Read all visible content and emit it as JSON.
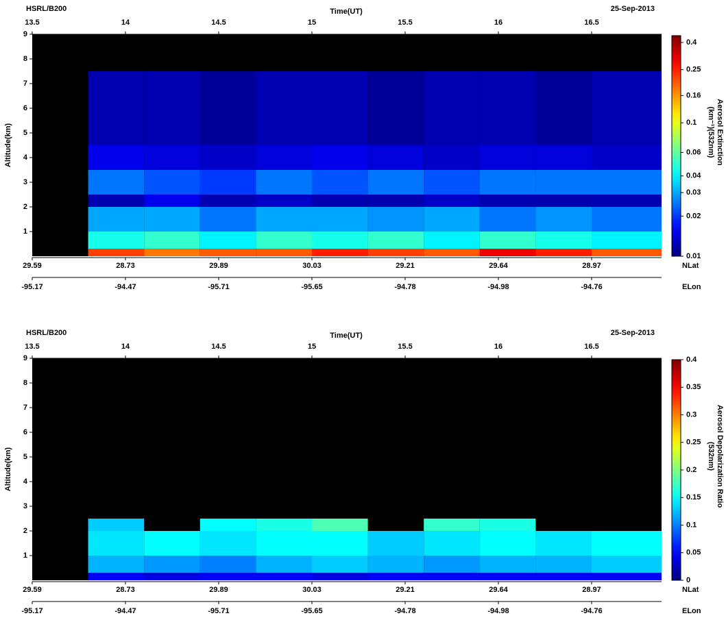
{
  "chart_data": [
    {
      "type": "heatmap",
      "title": "HSRL/B200",
      "date": "25-Sep-2013",
      "xlabel": "Time(UT)",
      "ylabel": "Altitude(km)",
      "xlim": [
        13.5,
        16.875
      ],
      "xticks": [
        13.5,
        14,
        14.5,
        15,
        15.5,
        16,
        16.5
      ],
      "ylim": [
        0,
        9
      ],
      "yticks": [
        1,
        2,
        3,
        4,
        5,
        6,
        7,
        8,
        9
      ],
      "x_bins": [
        13.5,
        13.8,
        14.1,
        14.4,
        14.7,
        15.0,
        15.3,
        15.6,
        15.9,
        16.2,
        16.5,
        16.875
      ],
      "y_bins": [
        0,
        0.3,
        1,
        2,
        2.5,
        3.5,
        4.5,
        7.5,
        9
      ],
      "z": [
        [
          null,
          0.22,
          0.18,
          0.2,
          0.2,
          0.25,
          0.22,
          0.2,
          0.3,
          0.25,
          0.2
        ],
        [
          null,
          0.045,
          0.05,
          0.04,
          0.05,
          0.045,
          0.05,
          0.04,
          0.05,
          0.045,
          0.04
        ],
        [
          null,
          0.03,
          0.03,
          0.025,
          0.03,
          0.03,
          0.028,
          0.03,
          0.025,
          0.028,
          0.025
        ],
        [
          null,
          0.012,
          0.015,
          0.012,
          0.013,
          0.012,
          0.012,
          0.013,
          0.012,
          0.012,
          0.012
        ],
        [
          null,
          0.025,
          0.022,
          0.02,
          0.025,
          0.022,
          0.025,
          0.022,
          0.025,
          0.025,
          0.025
        ],
        [
          null,
          0.015,
          0.014,
          0.013,
          0.014,
          0.015,
          0.014,
          0.013,
          0.014,
          0.014,
          0.013
        ],
        [
          null,
          0.012,
          0.012,
          0.011,
          0.012,
          0.012,
          0.011,
          0.012,
          0.012,
          0.011,
          0.012
        ],
        [
          null,
          null,
          null,
          null,
          null,
          null,
          null,
          null,
          null,
          null,
          null
        ]
      ],
      "colorbar": {
        "label": [
          "Aerosol Extinction",
          "(km⁻¹)(532nm)"
        ],
        "scale": "log",
        "clim": [
          0.01,
          0.45
        ],
        "ticks": [
          0.01,
          0.02,
          0.03,
          0.04,
          0.06,
          0.1,
          0.16,
          0.25,
          0.4
        ]
      },
      "nlat": {
        "name": "NLat",
        "ticks": [
          {
            "value": 13.5,
            "label": "29.59"
          },
          {
            "value": 14,
            "label": "28.73"
          },
          {
            "value": 14.5,
            "label": "29.89"
          },
          {
            "value": 15,
            "label": "30.03"
          },
          {
            "value": 15.5,
            "label": "29.21"
          },
          {
            "value": 16,
            "label": "29.64"
          },
          {
            "value": 16.5,
            "label": "28.97"
          }
        ]
      },
      "elon": {
        "name": "ELon",
        "ticks": [
          {
            "value": 13.5,
            "label": "-95.17"
          },
          {
            "value": 14,
            "label": "-94.47"
          },
          {
            "value": 14.5,
            "label": "-95.71"
          },
          {
            "value": 15,
            "label": "-95.65"
          },
          {
            "value": 15.5,
            "label": "-94.78"
          },
          {
            "value": 16,
            "label": "-94.98"
          },
          {
            "value": 16.5,
            "label": "-94.76"
          }
        ]
      }
    },
    {
      "type": "heatmap",
      "title": "HSRL/B200",
      "date": "25-Sep-2013",
      "xlabel": "Time(UT)",
      "ylabel": "Altitude(km)",
      "xlim": [
        13.5,
        16.875
      ],
      "xticks": [
        13.5,
        14,
        14.5,
        15,
        15.5,
        16,
        16.5
      ],
      "ylim": [
        0,
        9
      ],
      "yticks": [
        1,
        2,
        3,
        4,
        5,
        6,
        7,
        8,
        9
      ],
      "x_bins": [
        13.5,
        13.8,
        14.1,
        14.4,
        14.7,
        15.0,
        15.3,
        15.6,
        15.9,
        16.2,
        16.5,
        16.875
      ],
      "y_bins": [
        0,
        0.3,
        1,
        2,
        2.5,
        3.5,
        4.5,
        7.5,
        9
      ],
      "z": [
        [
          null,
          0.05,
          0.04,
          0.05,
          0.05,
          0.04,
          0.05,
          0.05,
          0.05,
          0.05,
          0.05
        ],
        [
          null,
          0.12,
          0.11,
          0.1,
          0.12,
          0.13,
          0.12,
          0.11,
          0.12,
          0.12,
          0.13
        ],
        [
          null,
          0.14,
          0.15,
          0.14,
          0.15,
          0.15,
          0.13,
          0.14,
          0.15,
          0.14,
          0.15
        ],
        [
          null,
          0.13,
          null,
          0.15,
          0.16,
          0.18,
          null,
          0.17,
          0.16,
          null,
          null
        ],
        [
          null,
          null,
          null,
          null,
          null,
          null,
          null,
          null,
          null,
          null,
          null
        ],
        [
          null,
          null,
          null,
          null,
          null,
          null,
          null,
          null,
          null,
          null,
          null
        ],
        [
          null,
          null,
          null,
          null,
          null,
          null,
          null,
          null,
          null,
          null,
          null
        ],
        [
          null,
          null,
          null,
          null,
          null,
          null,
          null,
          null,
          null,
          null,
          null
        ]
      ],
      "colorbar": {
        "label": [
          "Aerosol Depolarization Ratio",
          "(532nm)"
        ],
        "scale": "linear",
        "clim": [
          0,
          0.4
        ],
        "ticks": [
          0,
          0.05,
          0.1,
          0.15,
          0.2,
          0.25,
          0.3,
          0.35,
          0.4
        ]
      },
      "nlat": {
        "name": "NLat",
        "ticks": [
          {
            "value": 13.5,
            "label": "29.59"
          },
          {
            "value": 14,
            "label": "28.73"
          },
          {
            "value": 14.5,
            "label": "29.89"
          },
          {
            "value": 15,
            "label": "30.03"
          },
          {
            "value": 15.5,
            "label": "29.21"
          },
          {
            "value": 16,
            "label": "29.64"
          },
          {
            "value": 16.5,
            "label": "28.97"
          }
        ]
      },
      "elon": {
        "name": "ELon",
        "ticks": [
          {
            "value": 13.5,
            "label": "-95.17"
          },
          {
            "value": 14,
            "label": "-94.47"
          },
          {
            "value": 14.5,
            "label": "-95.71"
          },
          {
            "value": 15,
            "label": "-95.65"
          },
          {
            "value": 15.5,
            "label": "-94.78"
          },
          {
            "value": 16,
            "label": "-94.98"
          },
          {
            "value": 16.5,
            "label": "-94.76"
          }
        ]
      }
    }
  ]
}
